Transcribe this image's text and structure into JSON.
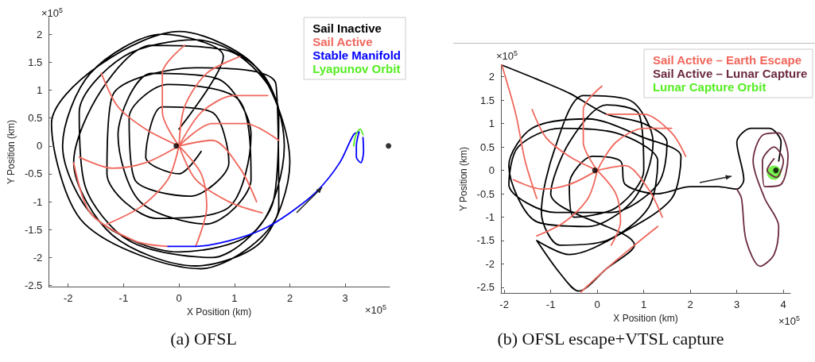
{
  "chart_data": [
    {
      "type": "line",
      "title": "(a) OFSL",
      "xlabel": "X Position (km)",
      "ylabel": "Y Position (km)",
      "xlim": [
        -2.35,
        3.8
      ],
      "ylim": [
        -2.52,
        2.3
      ],
      "xticks": [
        -2,
        -1,
        0,
        1,
        2,
        3
      ],
      "yticks": [
        -2.5,
        -2,
        -1.5,
        -1,
        -0.5,
        0,
        0.5,
        1,
        1.5,
        2
      ],
      "annotations": [
        "×10$^{5}$",
        "×10$^{5}$"
      ],
      "legend": "top right",
      "series": [
        {
          "type": "scatter",
          "marker": "circle",
          "color": "#000000",
          "x": [
            -0.05,
            3.78
          ],
          "values": [
            0,
            0
          ]
        },
        {
          "name": "Sail Inactive",
          "color": "#000000",
          "x": [
            0,
            0.8,
            -0.3,
            -1.6,
            -2.1,
            -1.5,
            0,
            1.4,
            1.9,
            1.5,
            0.3,
            -1.0,
            -1.8,
            -1.7,
            -0.9,
            0.6,
            1.7,
            1.8,
            0.9,
            -0.5,
            -1.4,
            -1.9,
            -1.2,
            0.3,
            1.5,
            2.0,
            1.4,
            0,
            -2.3,
            -1.7,
            0.4,
            1.8,
            1.75,
            0.3,
            -1.2,
            -1.3,
            -0.4,
            0.9,
            1.3,
            0.7,
            -0.5,
            -1.1,
            -0.7,
            0.5,
            1.3,
            1.1,
            -0.2,
            -0.9,
            -0.8,
            0.2,
            0.9,
            0.6,
            -0.3,
            -0.6,
            0,
            0.4
          ],
          "values": [
            0.3,
            1.6,
            2.0,
            1.3,
            0,
            -1.3,
            -1.9,
            -1.5,
            0,
            1.3,
            1.9,
            1.6,
            0.6,
            -0.7,
            -1.7,
            -2.0,
            -1.0,
            0.6,
            1.7,
            1.8,
            1.0,
            -0.3,
            -1.6,
            -2.15,
            -1.7,
            -0.3,
            1.4,
            2.05,
            0.4,
            -1.4,
            -2.2,
            -1.1,
            1.1,
            1.4,
            0.9,
            -0.5,
            -1.3,
            -1.1,
            0.2,
            1.2,
            1.3,
            0.2,
            -1.0,
            -1.4,
            -0.6,
            0.8,
            1.1,
            0.5,
            -0.6,
            -0.9,
            -0.3,
            0.6,
            0.7,
            -0.2,
            -0.5,
            -0.1
          ]
        },
        {
          "name": "Sail Active",
          "color": "#f0675c",
          "x": [
            0,
            -0.3,
            -0.3,
            0.1,
            null,
            0,
            0.4,
            1.0,
            1.6,
            null,
            0,
            0.6,
            1.1,
            1.4,
            null,
            0,
            0.4,
            0.5,
            0.3,
            null,
            0,
            -0.2,
            -0.7,
            -1.3,
            null,
            0,
            -0.6,
            -1.2,
            -1.8,
            null,
            0,
            -0.6,
            -1.1,
            -1.4,
            null,
            0,
            0.1,
            0.5,
            1.1,
            null,
            0,
            0.6,
            1.2,
            1.8,
            null,
            0,
            0.3,
            0.9,
            1.5,
            null,
            -1.9,
            -1.6,
            -0.8,
            -0.2
          ],
          "values": [
            0,
            0.6,
            1.3,
            1.8,
            null,
            0,
            0.6,
            0.9,
            0.9,
            null,
            0,
            0.1,
            -0.4,
            -1.0,
            null,
            0,
            -0.5,
            -1.1,
            -1.8,
            null,
            0,
            -0.6,
            -1.1,
            -1.4,
            null,
            0,
            -0.3,
            -0.4,
            -0.2,
            null,
            0,
            0.3,
            0.7,
            1.3,
            null,
            0,
            0.7,
            1.3,
            1.6,
            null,
            0,
            0.4,
            0.4,
            0.1,
            null,
            0,
            -0.6,
            -1.0,
            -1.2,
            null,
            -0.3,
            -1.2,
            -1.7,
            -1.8
          ]
        },
        {
          "name": "Stable Manifold",
          "color": "#0000ff",
          "x": [
            -0.2,
            0.3,
            0.9,
            1.5,
            2.0,
            2.5,
            2.9,
            3.15,
            3.25,
            3.2,
            3.2,
            3.28,
            3.33,
            3.32
          ],
          "values": [
            -1.8,
            -1.8,
            -1.7,
            -1.5,
            -1.2,
            -0.8,
            -0.3,
            0.2,
            0.25,
            0.0,
            -0.2,
            -0.3,
            -0.1,
            0.15
          ]
        },
        {
          "name": "Lyapunov Orbit",
          "color": "#55ee22",
          "x": [
            3.15,
            3.2,
            3.27,
            3.32
          ],
          "values": [
            0.0,
            0.22,
            0.3,
            0.2
          ]
        }
      ]
    },
    {
      "type": "line",
      "title": "(b) OFSL escape+VTSL capture",
      "xlabel": "X Position (km)",
      "ylabel": "Y Position (km)",
      "xlim": [
        -2.07,
        4.15
      ],
      "ylim": [
        -2.62,
        2.25
      ],
      "xticks": [
        -2,
        -1,
        0,
        1,
        2,
        3,
        4
      ],
      "yticks": [
        -2.5,
        -2,
        -1.5,
        -1,
        -0.5,
        0,
        0.5,
        1,
        1.5,
        2
      ],
      "annotations": [
        "×10$^{5}$",
        "×10$^{5}$"
      ],
      "legend": "top right",
      "series": [
        {
          "type": "scatter",
          "marker": "circle",
          "color": "#000000",
          "x": [
            -0.05,
            3.84
          ],
          "values": [
            0,
            0
          ]
        },
        {
          "color": "#000000",
          "x": [
            -2.05,
            -1.3,
            -0.6,
            0.2,
            1.0,
            1.5,
            1.3,
            0.3,
            -0.9,
            -1.9,
            -1.7,
            -0.8,
            0.4,
            1.3,
            1.1,
            0.2,
            -0.8,
            -1.2,
            -0.9,
            -0.3,
            0.7,
            1.2,
            0.8,
            -0.2,
            -1.3,
            -1.9,
            -1.4,
            -0.2,
            1.0,
            1.8,
            1.6,
            0.6,
            -0.6,
            -1.3,
            -0.8,
            -0.4,
            0.2,
            0.8,
            -1.0,
            -0.6,
            0.2,
            0.9,
            1.0,
            0.4,
            -0.5,
            -0.6,
            -0.1,
            0.5,
            0.6,
            1.3,
            2.0,
            2.6,
            3.0,
            3.15,
            3.0,
            3.3,
            3.7,
            3.95,
            3.9
          ],
          "values": [
            2.25,
            1.95,
            1.65,
            1.2,
            1.0,
            0.6,
            -0.3,
            -0.9,
            -0.9,
            -0.3,
            0.5,
            0.9,
            0.8,
            0.2,
            -0.8,
            -1.5,
            -1.6,
            -0.9,
            0.5,
            1.6,
            1.5,
            0.6,
            -0.6,
            -1.2,
            -1.1,
            0.1,
            0.9,
            1.1,
            0.7,
            0.3,
            -0.6,
            -1.3,
            -1.8,
            -1.5,
            -2.2,
            -2.58,
            -2.1,
            -1.6,
            -0.5,
            0.6,
            1.4,
            1.2,
            0.0,
            -0.8,
            -1.0,
            -0.3,
            0.3,
            0.2,
            -0.3,
            -0.5,
            -0.35,
            -0.35,
            -0.4,
            -0.2,
            0.6,
            0.9,
            0.9,
            0.6,
            0.2
          ]
        },
        {
          "name": "Sail Active – Earth Escape",
          "color": "#f0675c",
          "x": [
            -2.05,
            -1.75,
            -1.55,
            -1.3,
            null,
            -0.35,
            0.2,
            0.8,
            1.3,
            null,
            0,
            -0.3,
            -0.3,
            0.1,
            null,
            0,
            0.4,
            1.0,
            1.6,
            null,
            0,
            0.6,
            1.1,
            1.4,
            null,
            0,
            0.4,
            0.5,
            0.3,
            null,
            0,
            -0.2,
            -0.7,
            -1.3,
            null,
            0,
            -0.6,
            -1.2,
            -1.8,
            null,
            0,
            -0.6,
            -1.1,
            -1.4,
            null,
            0.2,
            1.0,
            1.6,
            1.9
          ],
          "values": [
            2.25,
            1.2,
            0.2,
            -0.6,
            null,
            -2.6,
            -2.1,
            -1.6,
            -1.2,
            null,
            0,
            0.6,
            1.3,
            1.8,
            null,
            0,
            0.6,
            0.9,
            0.9,
            null,
            0,
            0.1,
            -0.4,
            -1.0,
            null,
            0,
            -0.5,
            -1.1,
            -1.6,
            null,
            0,
            -0.6,
            -1.1,
            -1.4,
            null,
            0,
            -0.3,
            -0.4,
            -0.2,
            null,
            0,
            0.3,
            0.7,
            1.3,
            null,
            1.2,
            1.2,
            0.8,
            0.3
          ]
        },
        {
          "name": "Sail Active – Lunar Capture",
          "color": "#6b2a3e",
          "x": [
            3.0,
            3.1,
            3.2,
            3.5,
            3.8,
            3.9,
            3.6,
            3.35,
            3.55,
            3.9,
            4.1,
            3.95,
            3.6,
            3.55,
            3.8,
            4.0,
            3.85,
            3.65,
            3.8
          ],
          "values": [
            -0.4,
            -0.6,
            -1.5,
            -2.05,
            -1.8,
            -1.2,
            -0.6,
            0.2,
            0.75,
            0.8,
            0.3,
            -0.3,
            -0.35,
            0.2,
            0.5,
            0.2,
            -0.15,
            0.0,
            0.25
          ]
        },
        {
          "name": "Lunar Capture Orbit",
          "type": "scatter",
          "marker": "circle",
          "color": "#55ee22",
          "x": [
            3.8
          ],
          "values": [
            -0.05
          ]
        }
      ]
    }
  ]
}
